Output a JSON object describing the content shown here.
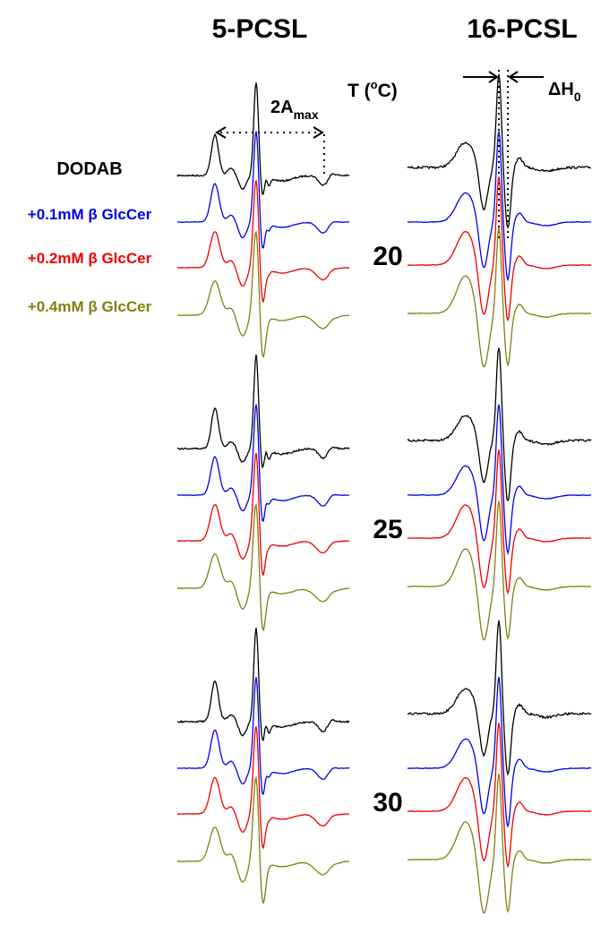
{
  "header": {
    "left": "5-PCSL",
    "right": "16-PCSL"
  },
  "temperature_label": {
    "main": "T (",
    "sup": "o",
    "end": "C)"
  },
  "annotations": {
    "amax": {
      "main": "2A",
      "sub": "max"
    },
    "dh": {
      "main": "ΔH",
      "sub": "0"
    }
  },
  "samples": [
    {
      "label": "DODAB",
      "color": "#000000"
    },
    {
      "label": "+0.1mM β GlcCer",
      "color": "#0000ee"
    },
    {
      "label": "+0.2mM β GlcCer",
      "color": "#ee0000"
    },
    {
      "label": "+0.4mM β GlcCer",
      "color": "#808010"
    }
  ],
  "temperatures": [
    "20",
    "25",
    "30"
  ]
}
